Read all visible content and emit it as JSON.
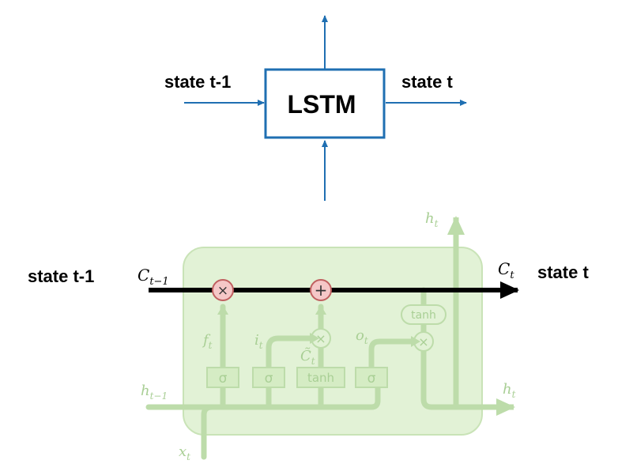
{
  "top_diagram": {
    "box_label": "LSTM",
    "left_label": "state t-1",
    "right_label": "state t",
    "colors": {
      "arrow": "#1f6fb2",
      "box_border": "#1f6fb2"
    }
  },
  "bottom_diagram": {
    "left_label": "state t-1",
    "right_label": "state t",
    "cell_state_in": "C_{t-1}",
    "cell_state_out": "C_t",
    "hidden_in": "h_{t-1}",
    "hidden_out_top": "h_t",
    "hidden_out_right": "h_t",
    "input": "x_t",
    "forget_gate": "f_t",
    "input_gate": "i_t",
    "candidate": "C̃_t",
    "output_gate": "o_t",
    "gates": [
      "σ",
      "σ",
      "tanh",
      "σ"
    ],
    "tanh_out": "tanh",
    "multiply": "×",
    "add": "+",
    "colors": {
      "cell_fill": "#e2f2d6",
      "cell_border": "#c9e3b7",
      "faint_line": "#bddcaa",
      "op_fill": "#f5c7c7",
      "op_stroke": "#c06060",
      "main_line": "#000000"
    }
  }
}
